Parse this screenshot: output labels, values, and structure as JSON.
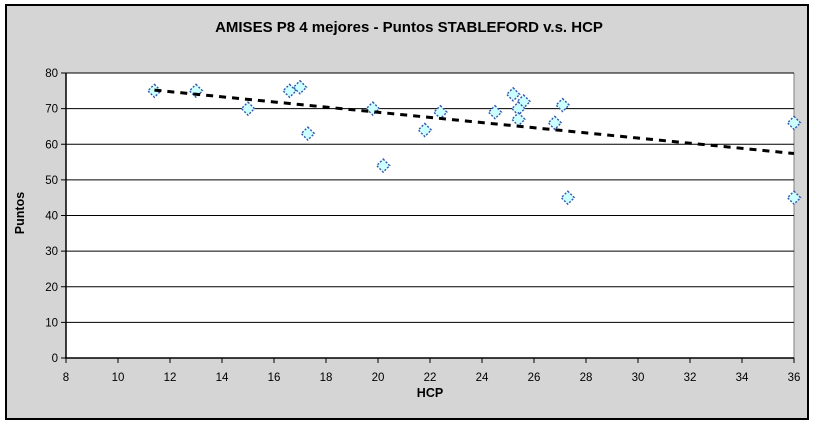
{
  "window": {
    "background": "#FFFFFF",
    "chart_background": "#D5D5D5",
    "frame_border_color": "#000000"
  },
  "chart_data": {
    "type": "scatter",
    "title": "AMISES P8 4 mejores - Puntos STABLEFORD v.s. HCP",
    "xlabel": "HCP",
    "ylabel": "Puntos",
    "xlim": [
      8,
      36
    ],
    "ylim": [
      0,
      80
    ],
    "x_ticks": [
      8,
      10,
      12,
      14,
      16,
      18,
      20,
      22,
      24,
      26,
      28,
      30,
      32,
      34,
      36
    ],
    "y_ticks": [
      0,
      10,
      20,
      30,
      40,
      50,
      60,
      70,
      80
    ],
    "grid": "horizontal",
    "gridline_color": "#000000",
    "plot_background": "#FFFFFF",
    "plot_border_color": "#808080",
    "legend": "none",
    "series": [
      {
        "name": "Puntos STABLEFORD",
        "marker": "diamond",
        "marker_fill": "#CCFFFF",
        "marker_edge": "#3355AA",
        "points": [
          [
            11.4,
            75
          ],
          [
            13.0,
            75
          ],
          [
            15.0,
            70
          ],
          [
            16.6,
            75
          ],
          [
            17.0,
            76
          ],
          [
            17.3,
            63
          ],
          [
            19.8,
            70
          ],
          [
            20.2,
            54
          ],
          [
            21.8,
            64
          ],
          [
            22.4,
            69
          ],
          [
            24.5,
            69
          ],
          [
            25.2,
            74
          ],
          [
            25.6,
            72
          ],
          [
            25.4,
            70
          ],
          [
            25.4,
            67
          ],
          [
            26.8,
            66
          ],
          [
            27.1,
            71
          ],
          [
            27.3,
            45
          ],
          [
            36.0,
            66
          ],
          [
            36.0,
            45
          ]
        ]
      }
    ],
    "trendline": {
      "style": "dotted",
      "color": "#000000",
      "from": [
        11.4,
        75.2
      ],
      "to": [
        36.0,
        57.4
      ]
    }
  }
}
